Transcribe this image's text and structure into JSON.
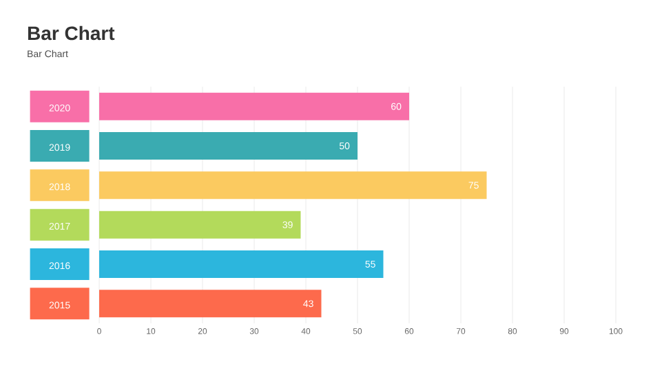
{
  "chart_data": {
    "type": "bar",
    "orientation": "horizontal",
    "title": "Bar Chart",
    "subtitle": "Bar Chart",
    "categories": [
      "2020",
      "2019",
      "2018",
      "2017",
      "2016",
      "2015"
    ],
    "values": [
      60,
      50,
      75,
      39,
      55,
      43
    ],
    "colors": [
      "#f86fa8",
      "#3aabb1",
      "#fbca60",
      "#b3da5b",
      "#2cb6dd",
      "#fd6a4c"
    ],
    "xlim": [
      0,
      100
    ],
    "xticks": [
      0,
      10,
      20,
      30,
      40,
      50,
      60,
      70,
      80,
      90,
      100
    ],
    "grid": "x",
    "data_labels": true
  }
}
